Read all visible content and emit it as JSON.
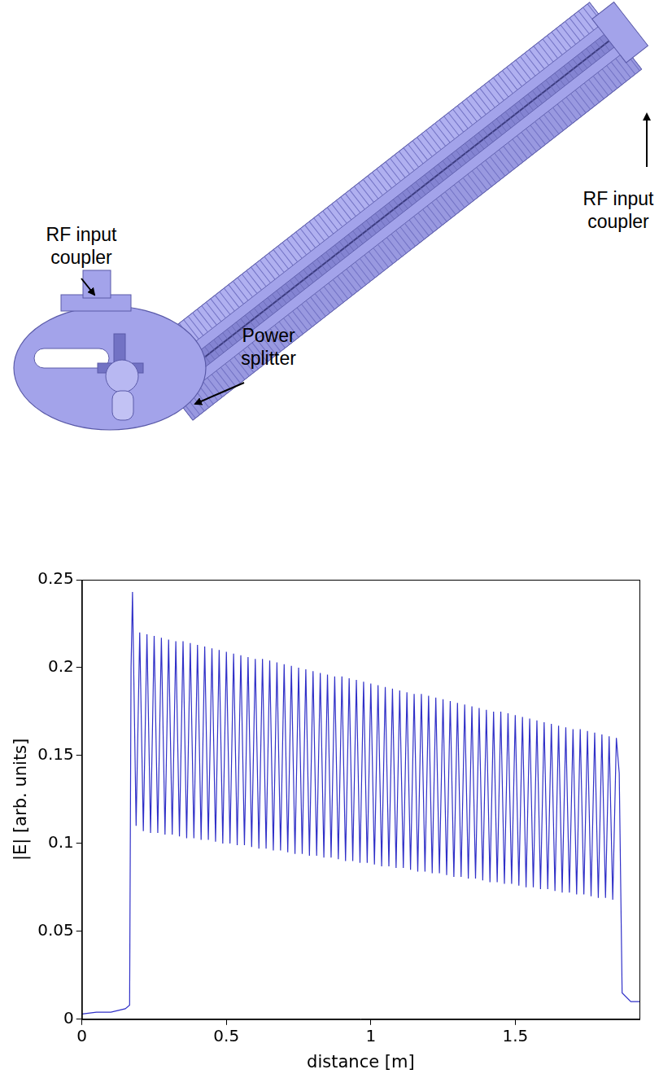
{
  "diagram": {
    "labels": [
      {
        "text": "RF input coupler"
      },
      {
        "text": "RF input coupler"
      },
      {
        "text": "Power splitter"
      }
    ]
  },
  "chart_data": {
    "type": "line",
    "x_label": "distance [m]",
    "y_label": "|E| [arb. units]",
    "xlim": [
      0,
      1.93
    ],
    "xticks": [
      0,
      0.5,
      1,
      1.5
    ],
    "ylim": [
      0,
      0.25
    ],
    "yticks": [
      0,
      0.05,
      0.1,
      0.15,
      0.2,
      0.25
    ],
    "grid": false,
    "x": [
      0,
      0.05,
      0.1,
      0.15,
      0.165,
      0.17,
      0.175,
      0.1875,
      0.2,
      0.2125,
      0.225,
      0.2375,
      0.25,
      0.2625,
      0.275,
      0.2875,
      0.3,
      0.3125,
      0.325,
      0.3375,
      0.35,
      0.3625,
      0.375,
      0.3875,
      0.4,
      0.4125,
      0.425,
      0.4375,
      0.45,
      0.4625,
      0.475,
      0.4875,
      0.5,
      0.5125,
      0.525,
      0.5375,
      0.55,
      0.5625,
      0.575,
      0.5875,
      0.6,
      0.6125,
      0.625,
      0.6375,
      0.65,
      0.6625,
      0.675,
      0.6875,
      0.7,
      0.7125,
      0.725,
      0.7375,
      0.75,
      0.7625,
      0.775,
      0.7875,
      0.8,
      0.8125,
      0.825,
      0.8375,
      0.85,
      0.8625,
      0.875,
      0.8875,
      0.9,
      0.9125,
      0.925,
      0.9375,
      0.95,
      0.9625,
      0.975,
      0.9875,
      1.0,
      1.0125,
      1.025,
      1.0375,
      1.05,
      1.0625,
      1.075,
      1.0875,
      1.1,
      1.1125,
      1.125,
      1.1375,
      1.15,
      1.1625,
      1.175,
      1.1875,
      1.2,
      1.2125,
      1.225,
      1.2375,
      1.25,
      1.2625,
      1.275,
      1.2875,
      1.3,
      1.3125,
      1.325,
      1.3375,
      1.35,
      1.3625,
      1.375,
      1.3875,
      1.4,
      1.4125,
      1.425,
      1.4375,
      1.45,
      1.4625,
      1.475,
      1.4875,
      1.5,
      1.5125,
      1.525,
      1.5375,
      1.55,
      1.5625,
      1.575,
      1.5875,
      1.6,
      1.6125,
      1.625,
      1.6375,
      1.65,
      1.6625,
      1.675,
      1.6875,
      1.7,
      1.7125,
      1.725,
      1.7375,
      1.75,
      1.7625,
      1.775,
      1.7875,
      1.8,
      1.8125,
      1.825,
      1.8375,
      1.85,
      1.86,
      1.87,
      1.9,
      1.93
    ],
    "series": [
      {
        "color": "#3030c8",
        "values": [
          0.003,
          0.004,
          0.004,
          0.006,
          0.008,
          0.2,
          0.243,
          0.11,
          0.22,
          0.107,
          0.219,
          0.106,
          0.218,
          0.106,
          0.217,
          0.105,
          0.216,
          0.105,
          0.215,
          0.104,
          0.215,
          0.103,
          0.214,
          0.103,
          0.213,
          0.102,
          0.212,
          0.102,
          0.211,
          0.101,
          0.21,
          0.1,
          0.209,
          0.1,
          0.208,
          0.099,
          0.207,
          0.099,
          0.206,
          0.098,
          0.205,
          0.097,
          0.205,
          0.097,
          0.204,
          0.096,
          0.203,
          0.096,
          0.202,
          0.095,
          0.201,
          0.094,
          0.2,
          0.094,
          0.199,
          0.093,
          0.198,
          0.093,
          0.197,
          0.092,
          0.196,
          0.092,
          0.195,
          0.091,
          0.195,
          0.09,
          0.194,
          0.09,
          0.193,
          0.089,
          0.192,
          0.089,
          0.191,
          0.088,
          0.19,
          0.087,
          0.189,
          0.087,
          0.188,
          0.086,
          0.187,
          0.086,
          0.186,
          0.085,
          0.185,
          0.084,
          0.185,
          0.084,
          0.184,
          0.083,
          0.183,
          0.083,
          0.182,
          0.082,
          0.181,
          0.081,
          0.18,
          0.081,
          0.179,
          0.08,
          0.178,
          0.08,
          0.177,
          0.079,
          0.176,
          0.078,
          0.175,
          0.078,
          0.175,
          0.077,
          0.174,
          0.077,
          0.173,
          0.076,
          0.172,
          0.075,
          0.171,
          0.075,
          0.17,
          0.074,
          0.169,
          0.074,
          0.168,
          0.073,
          0.167,
          0.072,
          0.166,
          0.072,
          0.165,
          0.071,
          0.165,
          0.071,
          0.164,
          0.07,
          0.163,
          0.069,
          0.162,
          0.069,
          0.161,
          0.068,
          0.16,
          0.14,
          0.015,
          0.01,
          0.01
        ]
      }
    ]
  }
}
